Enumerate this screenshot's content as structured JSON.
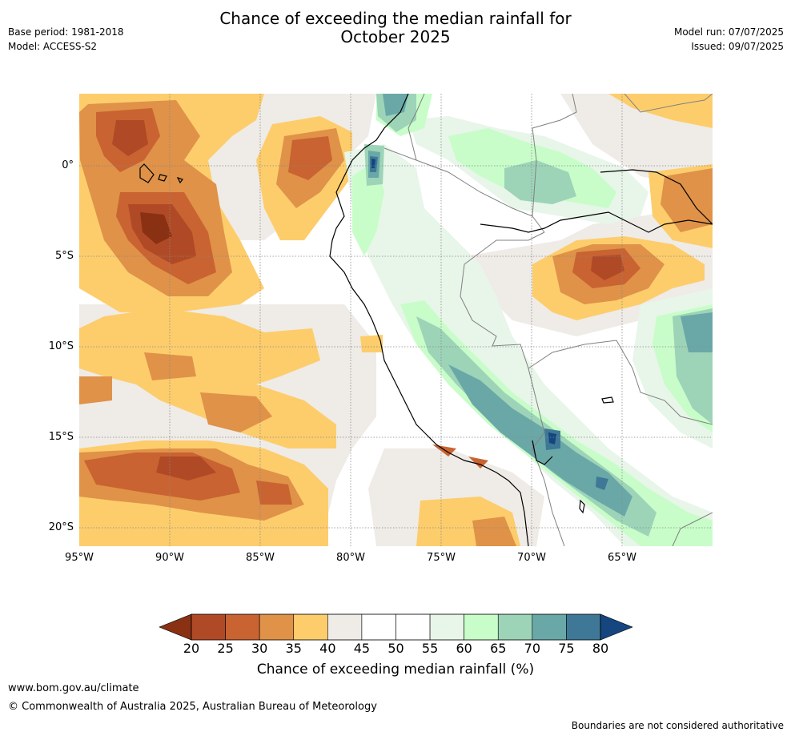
{
  "header": {
    "title_line1": "Chance of exceeding the median rainfall for",
    "title_line2": "October 2025",
    "base_period": "Base period: 1981-2018",
    "model": "Model: ACCESS-S2",
    "model_run": "Model run: 07/07/2025",
    "issued": "Issued: 09/07/2025"
  },
  "map": {
    "lat_labels": [
      "0°",
      "5°S",
      "10°S",
      "15°S",
      "20°S"
    ],
    "lon_labels": [
      "95°W",
      "90°W",
      "85°W",
      "80°W",
      "75°W",
      "70°W",
      "65°W"
    ],
    "colors": {
      "p20_25": "#b04a26",
      "p25_30": "#c96331",
      "p30_35": "#df9248",
      "p35_40": "#fdcd6c",
      "p40_45": "#efebe7",
      "p45_55": "#ffffff",
      "p55_60": "#e8f5e9",
      "p60_65": "#c8fdc9",
      "p65_70": "#9dd4b8",
      "p70_75": "#6aa8a8",
      "p75_80": "#3f7896",
      "above80": "#15467f",
      "below20": "#8a3114",
      "coast": "#000000",
      "border": "#808080"
    }
  },
  "colorbar": {
    "ticks": [
      "20",
      "25",
      "30",
      "35",
      "40",
      "45",
      "50",
      "55",
      "60",
      "65",
      "70",
      "75",
      "80"
    ],
    "label": "Chance of exceeding median rainfall (%)"
  },
  "footer": {
    "website": "www.bom.gov.au/climate",
    "copyright": "© Commonwealth of Australia 2025, Australian Bureau of Meteorology",
    "disclaimer": "Boundaries are not considered authoritative"
  }
}
